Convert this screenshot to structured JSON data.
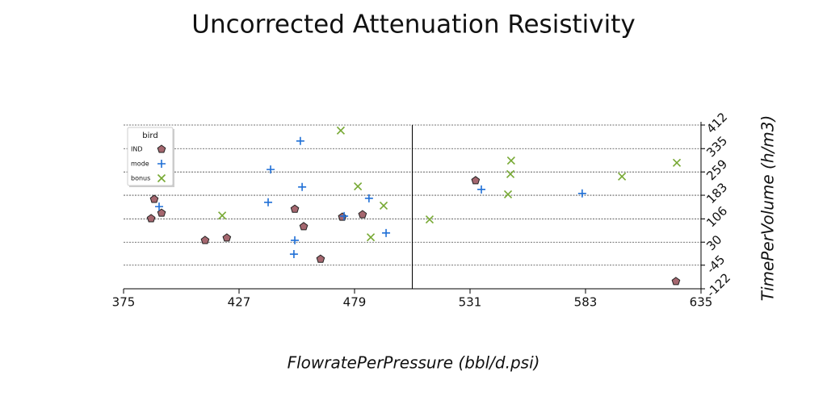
{
  "chart_data": {
    "type": "scatter",
    "title": "Uncorrected Attenuation Resistivity",
    "xlabel": "FlowratePerPressure (bbl/d.psi)",
    "ylabel": "TimePerVolume (h/m3)",
    "xlim": [
      375,
      635
    ],
    "xticks": [
      375,
      427,
      479,
      531,
      583,
      635
    ],
    "ylim": [
      -122,
      412
    ],
    "yticks": [
      -122,
      -45,
      30,
      106,
      183,
      259,
      335,
      412
    ],
    "grid": true,
    "legend_title": "bird",
    "legend": "upper left",
    "vline": 505,
    "series": [
      {
        "name": "IND",
        "color": "#a5676f",
        "marker": "pentagon",
        "x": [
          388.8,
          392.1,
          387.4,
          411.7,
          421.5,
          452.1,
          456.1,
          463.7,
          473.5,
          482.6,
          533.5,
          623.7
        ],
        "values": [
          170,
          125,
          107,
          36,
          44,
          138,
          81,
          -25,
          112,
          120,
          231,
          -98
        ]
      },
      {
        "name": "mode",
        "color": "#1f6fd6",
        "marker": "plus",
        "x": [
          454.6,
          441.2,
          455.4,
          440.1,
          391,
          474.3,
          485.5,
          493.2,
          452.1,
          451.7,
          536.1,
          581.5
        ],
        "values": [
          360,
          267,
          210,
          160,
          146,
          115,
          173,
          60,
          36,
          -9,
          202,
          189
        ]
      },
      {
        "name": "bonus",
        "color": "#76a832",
        "marker": "x",
        "x": [
          472.8,
          549.5,
          549.2,
          480.5,
          548.1,
          492.1,
          419.4,
          512.8,
          486.3,
          599.4,
          624.1
        ],
        "values": [
          394,
          296,
          252,
          212,
          186,
          149,
          117,
          104,
          46,
          244,
          289
        ]
      }
    ]
  }
}
